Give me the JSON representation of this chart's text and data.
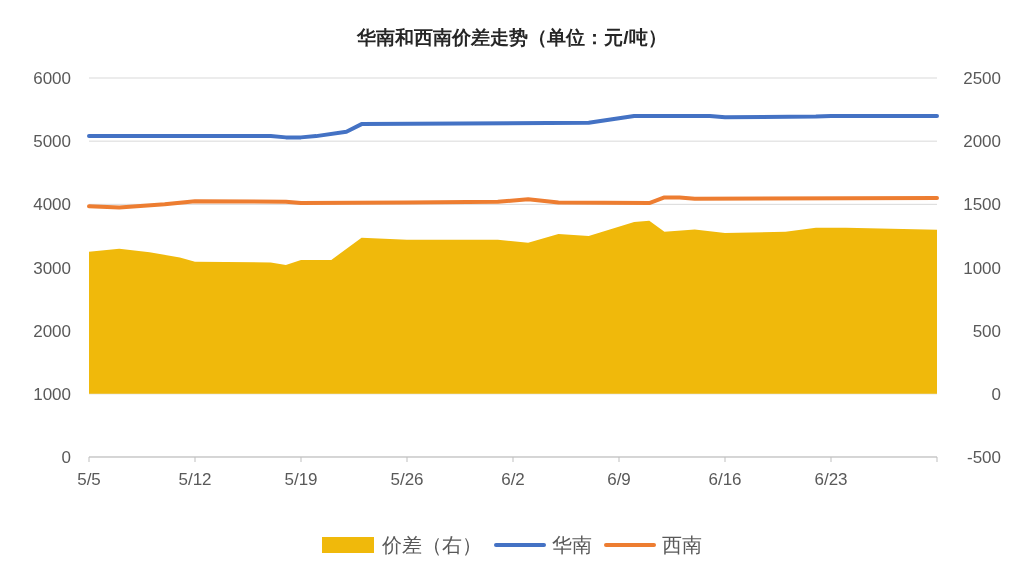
{
  "chart_data": {
    "type": "line",
    "title": "华南和西南价差走势（单位：元/吨）",
    "xlim": [
      "--05-05",
      "--06-30"
    ],
    "xticks": [
      {
        "value": "--05-05",
        "label": "5/5"
      },
      {
        "value": "--05-12",
        "label": "5/12"
      },
      {
        "value": "--05-19",
        "label": "5/19"
      },
      {
        "value": "--05-26",
        "label": "5/26"
      },
      {
        "value": "--06-02",
        "label": "6/2"
      },
      {
        "value": "--06-09",
        "label": "6/9"
      },
      {
        "value": "--06-16",
        "label": "6/16"
      },
      {
        "value": "--06-23",
        "label": "6/23"
      }
    ],
    "ylim": [
      0,
      6000
    ],
    "yticks": [
      0,
      1000,
      2000,
      3000,
      4000,
      5000,
      6000
    ],
    "y2lim": [
      -500,
      2500
    ],
    "y2ticks": [
      -500,
      0,
      500,
      1000,
      1500,
      2000,
      2500
    ],
    "grid": "y",
    "legend": "bottom",
    "series": [
      {
        "name": "价差（右）",
        "type": "area",
        "axis": "y2",
        "color": "#f0b90b",
        "x": [
          "--05-05",
          "--05-07",
          "--05-09",
          "--05-11",
          "--05-12",
          "--05-17",
          "--05-18",
          "--05-19",
          "--05-21",
          "--05-23",
          "--05-26",
          "--06-01",
          "--06-03",
          "--06-05",
          "--06-07",
          "--06-10",
          "--06-11",
          "--06-12",
          "--06-14",
          "--06-16",
          "--06-20",
          "--06-22",
          "--06-24",
          "--06-30"
        ],
        "values": [
          1124,
          1148,
          1120,
          1080,
          1045,
          1040,
          1020,
          1060,
          1060,
          1235,
          1220,
          1220,
          1195,
          1266,
          1250,
          1360,
          1370,
          1282,
          1300,
          1274,
          1282,
          1314,
          1314,
          1298
        ]
      },
      {
        "name": "华南",
        "color": "#4472c4",
        "x": [
          "--05-05",
          "--05-17",
          "--05-18",
          "--05-19",
          "--05-20",
          "--05-22",
          "--05-23",
          "--06-07",
          "--06-10",
          "--06-15",
          "--06-16",
          "--06-22",
          "--06-23",
          "--06-30"
        ],
        "values": [
          5080,
          5080,
          5060,
          5060,
          5080,
          5150,
          5270,
          5290,
          5400,
          5400,
          5380,
          5390,
          5400,
          5400
        ]
      },
      {
        "name": "西南",
        "color": "#ed7d31",
        "x": [
          "--05-05",
          "--05-07",
          "--05-10",
          "--05-12",
          "--05-18",
          "--05-19",
          "--05-26",
          "--06-01",
          "--06-03",
          "--06-05",
          "--06-11",
          "--06-12",
          "--06-13",
          "--06-14",
          "--06-30"
        ],
        "values": [
          3970,
          3950,
          4000,
          4050,
          4040,
          4020,
          4030,
          4040,
          4080,
          4030,
          4020,
          4110,
          4110,
          4090,
          4100
        ]
      }
    ]
  }
}
